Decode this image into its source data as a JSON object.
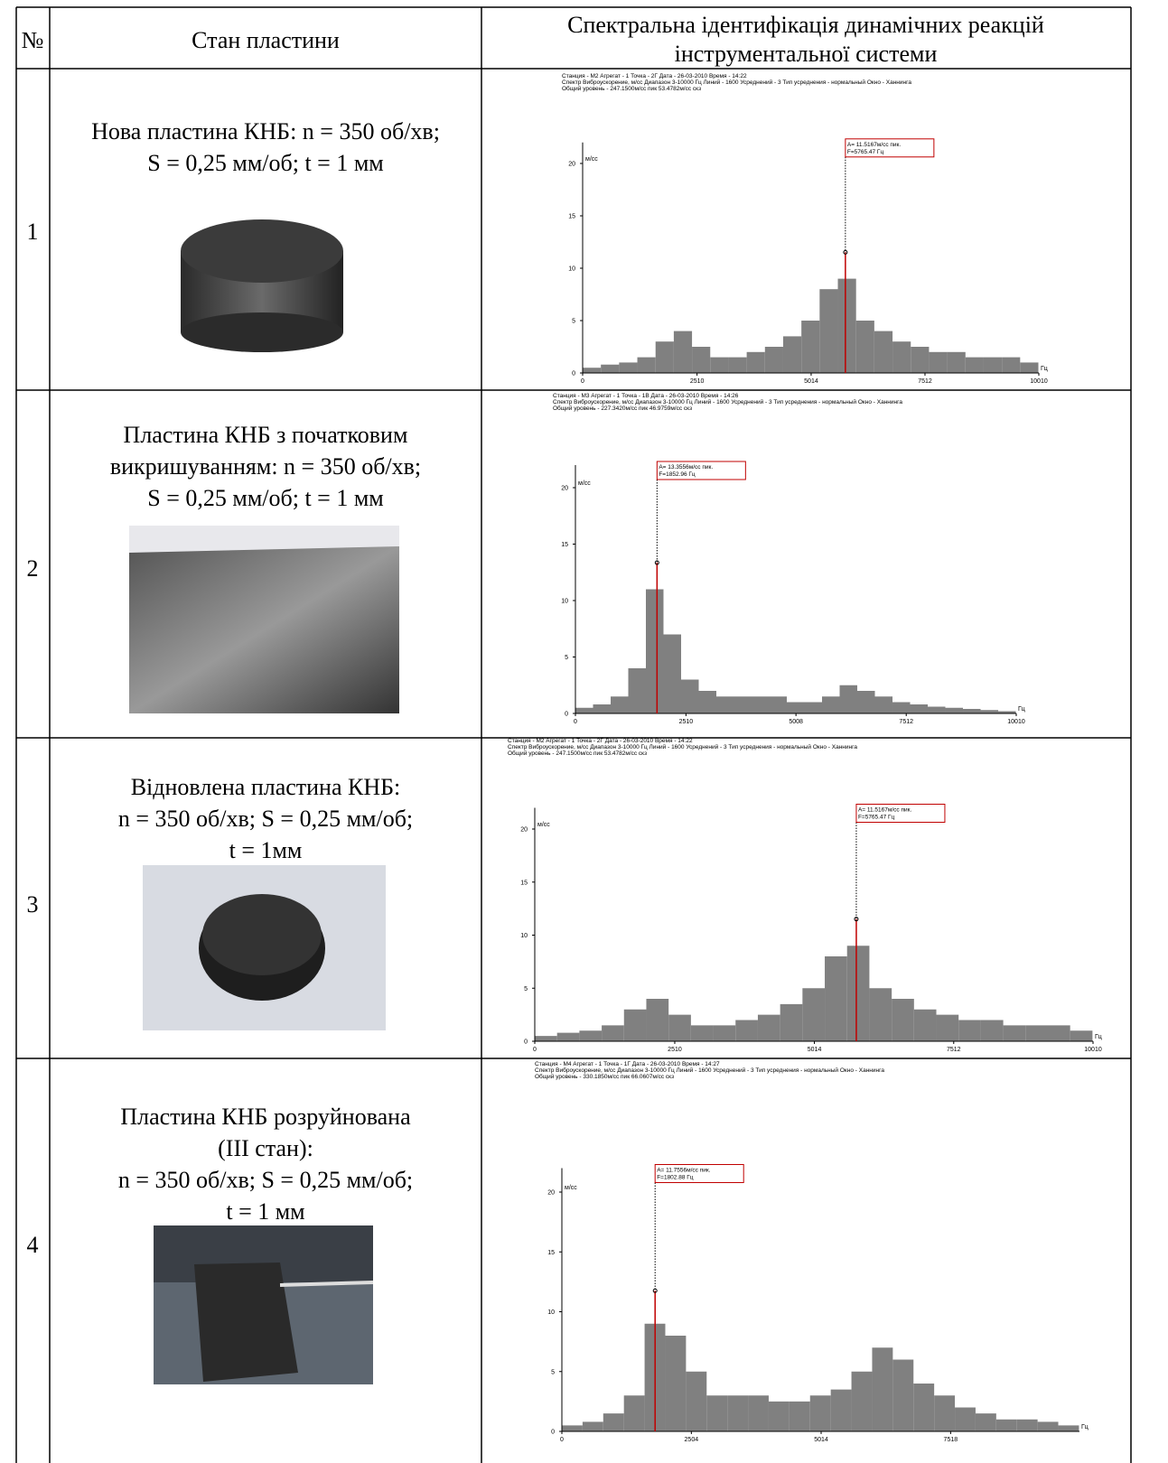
{
  "header": {
    "number": "№",
    "state": "Стан пластини",
    "spectrum": [
      "Спектральна ідентифікація динамічних реакцій",
      "інструментальної системи"
    ]
  },
  "rows": [
    {
      "number": 1,
      "description": [
        "Нова пластина КНБ: n = 350 об/хв;",
        "S = 0,25 мм/об; t = 1 мм"
      ],
      "spectrum": {
        "type": "bar",
        "header": [
          "Станция - М2    Агрегат - 1    Точка - 2Г    Дата - 26-03-2010    Время - 14:22",
          "Спектр   Виброускорение, м/сс    Диапазон 3-10000 Гц   Линий - 1600   Усреднений - 3   Тип усреднения - нормальный   Окно - Ханнинга",
          "Общий уровень - 247.1500м/сс пик    53.4782м/сс скз"
        ],
        "y_unit": "м/сс",
        "x_unit": "Гц",
        "ylim": [
          0,
          22
        ],
        "yticks": [
          0,
          5,
          10,
          15,
          20
        ],
        "xlim": [
          0,
          10010
        ],
        "xticks": [
          0,
          2510,
          5014,
          7512,
          10010
        ],
        "bins": [
          0,
          400,
          800,
          1200,
          1600,
          2000,
          2400,
          2800,
          3200,
          3600,
          4000,
          4400,
          4800,
          5200,
          5600,
          6000,
          6400,
          6800,
          7200,
          7600,
          8000,
          8400,
          8800,
          9200,
          9600,
          10000
        ],
        "values": [
          0.5,
          0.8,
          1,
          1.5,
          3,
          4,
          2.5,
          1.5,
          1.5,
          2,
          2.5,
          3.5,
          5,
          8,
          9,
          5,
          4,
          3,
          2.5,
          2,
          2,
          1.5,
          1.5,
          1.5,
          1
        ],
        "color": "#808080",
        "peak_color": "#c00000",
        "peak": {
          "x": 5765.47,
          "y": 11.5167,
          "label_a": "A= 11.5167м/сс пик.",
          "label_f": "F=5765.47 Гц"
        }
      }
    },
    {
      "number": 2,
      "description": [
        "Пластина КНБ з початковим",
        "викришуванням: n = 350 об/хв;",
        "S = 0,25 мм/об; t = 1 мм"
      ],
      "spectrum": {
        "type": "bar",
        "header": [
          "Станция - М3    Агрегат - 1    Точка - 1В    Дата - 26-03-2010    Время - 14:26",
          "Спектр   Виброускорение, м/сс    Диапазон 3-10000 Гц   Линий - 1600   Усреднений - 3   Тип усреднения - нормальный   Окно - Ханнинга",
          "Общий уровень - 227.3420м/сс пик    46.9759м/сс скз"
        ],
        "y_unit": "м/сс",
        "x_unit": "Гц",
        "ylim": [
          0,
          22
        ],
        "yticks": [
          0,
          5,
          10,
          15,
          20
        ],
        "xlim": [
          0,
          10010
        ],
        "xticks": [
          0,
          2510,
          5008,
          7512,
          10010
        ],
        "bins": [
          0,
          400,
          800,
          1200,
          1600,
          2000,
          2400,
          2800,
          3200,
          3600,
          4000,
          4400,
          4800,
          5200,
          5600,
          6000,
          6400,
          6800,
          7200,
          7600,
          8000,
          8400,
          8800,
          9200,
          9600,
          10000
        ],
        "values": [
          0.5,
          0.8,
          1.5,
          4,
          11,
          7,
          3,
          2,
          1.5,
          1.5,
          1.5,
          1.5,
          1,
          1,
          1.5,
          2.5,
          2,
          1.5,
          1,
          0.8,
          0.6,
          0.5,
          0.4,
          0.3,
          0.2
        ],
        "color": "#808080",
        "peak_color": "#c00000",
        "peak": {
          "x": 1852.96,
          "y": 13.3556,
          "label_a": "A= 13.3556м/сс пик.",
          "label_f": "F=1852.96 Гц"
        }
      }
    },
    {
      "number": 3,
      "description": [
        "Відновлена пластина КНБ:",
        "n = 350 об/хв; S = 0,25 мм/об;",
        "t = 1мм"
      ],
      "spectrum": {
        "type": "bar",
        "header": [
          "Станция - М2    Агрегат - 1    Точка - 2Г    Дата - 26-03-2010    Время - 14:22",
          "Спектр   Виброускорение, м/сс    Диапазон 3-10000 Гц   Линий - 1600   Усреднений - 3   Тип усреднения - нормальный   Окно - Ханнинга",
          "Общий уровень - 247.1500м/сс пик    53.4782м/сс скз"
        ],
        "y_unit": "м/сс",
        "x_unit": "Гц",
        "ylim": [
          0,
          22
        ],
        "yticks": [
          0,
          5,
          10,
          15,
          20
        ],
        "xlim": [
          0,
          10010
        ],
        "xticks": [
          0,
          2510,
          5014,
          7512,
          10010
        ],
        "bins": [
          0,
          400,
          800,
          1200,
          1600,
          2000,
          2400,
          2800,
          3200,
          3600,
          4000,
          4400,
          4800,
          5200,
          5600,
          6000,
          6400,
          6800,
          7200,
          7600,
          8000,
          8400,
          8800,
          9200,
          9600,
          10000
        ],
        "values": [
          0.5,
          0.8,
          1,
          1.5,
          3,
          4,
          2.5,
          1.5,
          1.5,
          2,
          2.5,
          3.5,
          5,
          8,
          9,
          5,
          4,
          3,
          2.5,
          2,
          2,
          1.5,
          1.5,
          1.5,
          1
        ],
        "color": "#808080",
        "peak_color": "#c00000",
        "peak": {
          "x": 5765.47,
          "y": 11.5167,
          "label_a": "A= 11.5167м/сс пик.",
          "label_f": "F=5765.47 Гц"
        }
      }
    },
    {
      "number": 4,
      "description": [
        "Пластина КНБ розруйнована",
        "(ІІІ стан):",
        "n = 350 об/хв; S = 0,25 мм/об;",
        "t = 1 мм"
      ],
      "spectrum": {
        "type": "bar",
        "header": [
          "Станция - М4    Агрегат - 1    Точка - 1Г    Дата - 26-03-2010    Время - 14:27",
          "Спектр   Виброускорение, м/сс    Диапазон 3-10000 Гц   Линий - 1600   Усреднений - 3   Тип усреднения - нормальный   Окно - Ханнинга",
          "Общий уровень - 330.1850м/сс пик    66.0607м/сс скз"
        ],
        "y_unit": "м/сс",
        "x_unit": "Гц",
        "ylim": [
          0,
          22
        ],
        "yticks": [
          0,
          5,
          10,
          15,
          20
        ],
        "xlim": [
          0,
          10010
        ],
        "xticks": [
          0,
          2504,
          5014,
          7518
        ],
        "bins": [
          0,
          400,
          800,
          1200,
          1600,
          2000,
          2400,
          2800,
          3200,
          3600,
          4000,
          4400,
          4800,
          5200,
          5600,
          6000,
          6400,
          6800,
          7200,
          7600,
          8000,
          8400,
          8800,
          9200,
          9600,
          10000
        ],
        "values": [
          0.5,
          0.8,
          1.5,
          3,
          9,
          8,
          5,
          3,
          3,
          3,
          2.5,
          2.5,
          3,
          3.5,
          5,
          7,
          6,
          4,
          3,
          2,
          1.5,
          1,
          1,
          0.8,
          0.5
        ],
        "color": "#808080",
        "peak_color": "#c00000",
        "peak": {
          "x": 1802.88,
          "y": 11.7556,
          "label_a": "A= 11.7556м/сс пик.",
          "label_f": "F=1802.88 Гц"
        }
      }
    }
  ]
}
